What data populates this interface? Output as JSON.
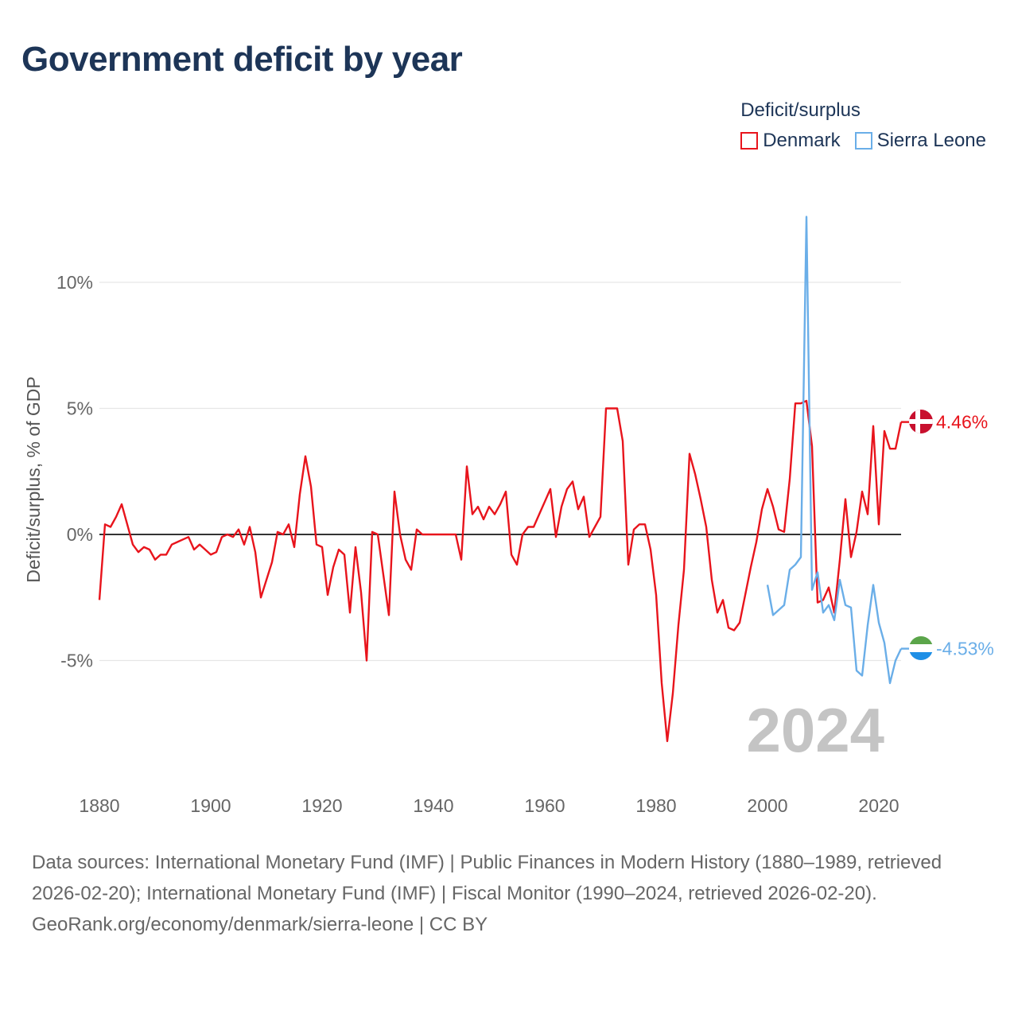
{
  "title": "Government deficit by year",
  "legend": {
    "title": "Deficit/surplus",
    "items": [
      {
        "name": "Denmark",
        "color": "#e8141c"
      },
      {
        "name": "Sierra Leone",
        "color": "#6aaee8"
      }
    ]
  },
  "footer": {
    "sources": "Data sources: International Monetary Fund (IMF) | Public Finances in Modern History (1880–1989, retrieved 2026-02-20); International Monetary Fund (IMF) | Fiscal Monitor (1990–2024, retrieved 2026-02-20).",
    "credit": "GeoRank.org/economy/denmark/sierra-leone | CC BY"
  },
  "chart_data": {
    "type": "line",
    "title": "Government deficit by year",
    "ylabel": "Deficit/surplus, % of GDP",
    "xlabel": "",
    "xlim": [
      1880,
      2024
    ],
    "ylim": [
      -9,
      13
    ],
    "x_ticks": [
      {
        "value": 1880,
        "label": "1880"
      },
      {
        "value": 1900,
        "label": "1900"
      },
      {
        "value": 1920,
        "label": "1920"
      },
      {
        "value": 1940,
        "label": "1940"
      },
      {
        "value": 1960,
        "label": "1960"
      },
      {
        "value": 1980,
        "label": "1980"
      },
      {
        "value": 2000,
        "label": "2000"
      },
      {
        "value": 2020,
        "label": "2020"
      }
    ],
    "y_ticks": [
      {
        "value": 10,
        "label": "10%"
      },
      {
        "value": 5,
        "label": "5%"
      },
      {
        "value": 0,
        "label": "0%"
      },
      {
        "value": -5,
        "label": "-5%"
      }
    ],
    "year_label": "2024",
    "series": [
      {
        "name": "Denmark",
        "color": "#e8141c",
        "end_label": "4.46%",
        "points": [
          [
            1880,
            -2.6
          ],
          [
            1881,
            0.4
          ],
          [
            1882,
            0.3
          ],
          [
            1883,
            0.7
          ],
          [
            1884,
            1.2
          ],
          [
            1885,
            0.4
          ],
          [
            1886,
            -0.4
          ],
          [
            1887,
            -0.7
          ],
          [
            1888,
            -0.5
          ],
          [
            1889,
            -0.6
          ],
          [
            1890,
            -1.0
          ],
          [
            1891,
            -0.8
          ],
          [
            1892,
            -0.8
          ],
          [
            1893,
            -0.4
          ],
          [
            1894,
            -0.3
          ],
          [
            1895,
            -0.2
          ],
          [
            1896,
            -0.1
          ],
          [
            1897,
            -0.6
          ],
          [
            1898,
            -0.4
          ],
          [
            1899,
            -0.6
          ],
          [
            1900,
            -0.8
          ],
          [
            1901,
            -0.7
          ],
          [
            1902,
            -0.1
          ],
          [
            1903,
            0.0
          ],
          [
            1904,
            -0.1
          ],
          [
            1905,
            0.2
          ],
          [
            1906,
            -0.4
          ],
          [
            1907,
            0.3
          ],
          [
            1908,
            -0.7
          ],
          [
            1909,
            -2.5
          ],
          [
            1910,
            -1.8
          ],
          [
            1911,
            -1.1
          ],
          [
            1912,
            0.1
          ],
          [
            1913,
            0.0
          ],
          [
            1914,
            0.4
          ],
          [
            1915,
            -0.5
          ],
          [
            1916,
            1.6
          ],
          [
            1917,
            3.1
          ],
          [
            1918,
            1.9
          ],
          [
            1919,
            -0.4
          ],
          [
            1920,
            -0.5
          ],
          [
            1921,
            -2.4
          ],
          [
            1922,
            -1.3
          ],
          [
            1923,
            -0.6
          ],
          [
            1924,
            -0.8
          ],
          [
            1925,
            -3.1
          ],
          [
            1926,
            -0.5
          ],
          [
            1927,
            -2.3
          ],
          [
            1928,
            -5.0
          ],
          [
            1929,
            0.1
          ],
          [
            1930,
            0.0
          ],
          [
            1931,
            -1.6
          ],
          [
            1932,
            -3.2
          ],
          [
            1933,
            1.7
          ],
          [
            1934,
            0.0
          ],
          [
            1935,
            -1.0
          ],
          [
            1936,
            -1.4
          ],
          [
            1937,
            0.2
          ],
          [
            1938,
            0.0
          ],
          [
            1939,
            0.0
          ],
          [
            1940,
            0.0
          ],
          [
            1941,
            0.0
          ],
          [
            1942,
            0.0
          ],
          [
            1943,
            0.0
          ],
          [
            1944,
            0.0
          ],
          [
            1945,
            -1.0
          ],
          [
            1946,
            2.7
          ],
          [
            1947,
            0.8
          ],
          [
            1948,
            1.1
          ],
          [
            1949,
            0.6
          ],
          [
            1950,
            1.1
          ],
          [
            1951,
            0.8
          ],
          [
            1952,
            1.2
          ],
          [
            1953,
            1.7
          ],
          [
            1954,
            -0.8
          ],
          [
            1955,
            -1.2
          ],
          [
            1956,
            0.0
          ],
          [
            1957,
            0.3
          ],
          [
            1958,
            0.3
          ],
          [
            1959,
            0.8
          ],
          [
            1960,
            1.3
          ],
          [
            1961,
            1.8
          ],
          [
            1962,
            -0.1
          ],
          [
            1963,
            1.1
          ],
          [
            1964,
            1.8
          ],
          [
            1965,
            2.1
          ],
          [
            1966,
            1.0
          ],
          [
            1967,
            1.5
          ],
          [
            1968,
            -0.1
          ],
          [
            1969,
            0.3
          ],
          [
            1970,
            0.7
          ],
          [
            1971,
            5.0
          ],
          [
            1972,
            5.0
          ],
          [
            1973,
            5.0
          ],
          [
            1974,
            3.7
          ],
          [
            1975,
            -1.2
          ],
          [
            1976,
            0.2
          ],
          [
            1977,
            0.4
          ],
          [
            1978,
            0.4
          ],
          [
            1979,
            -0.6
          ],
          [
            1980,
            -2.4
          ],
          [
            1981,
            -5.9
          ],
          [
            1982,
            -8.2
          ],
          [
            1983,
            -6.3
          ],
          [
            1984,
            -3.6
          ],
          [
            1985,
            -1.4
          ],
          [
            1986,
            3.2
          ],
          [
            1987,
            2.4
          ],
          [
            1988,
            1.4
          ],
          [
            1989,
            0.3
          ],
          [
            1990,
            -1.8
          ],
          [
            1991,
            -3.1
          ],
          [
            1992,
            -2.6
          ],
          [
            1993,
            -3.7
          ],
          [
            1994,
            -3.8
          ],
          [
            1995,
            -3.5
          ],
          [
            1996,
            -2.4
          ],
          [
            1997,
            -1.3
          ],
          [
            1998,
            -0.3
          ],
          [
            1999,
            1.0
          ],
          [
            2000,
            1.8
          ],
          [
            2001,
            1.1
          ],
          [
            2002,
            0.2
          ],
          [
            2003,
            0.1
          ],
          [
            2004,
            2.2
          ],
          [
            2005,
            5.2
          ],
          [
            2006,
            5.2
          ],
          [
            2007,
            5.3
          ],
          [
            2008,
            3.5
          ],
          [
            2009,
            -2.7
          ],
          [
            2010,
            -2.6
          ],
          [
            2011,
            -2.1
          ],
          [
            2012,
            -3.1
          ],
          [
            2013,
            -1.0
          ],
          [
            2014,
            1.4
          ],
          [
            2015,
            -0.9
          ],
          [
            2016,
            0.1
          ],
          [
            2017,
            1.7
          ],
          [
            2018,
            0.8
          ],
          [
            2019,
            4.3
          ],
          [
            2020,
            0.4
          ],
          [
            2021,
            4.1
          ],
          [
            2022,
            3.4
          ],
          [
            2023,
            3.4
          ],
          [
            2024,
            4.46
          ]
        ]
      },
      {
        "name": "Sierra Leone",
        "color": "#6aaee8",
        "end_label": "-4.53%",
        "points": [
          [
            2000,
            -2.0
          ],
          [
            2001,
            -3.2
          ],
          [
            2002,
            -3.0
          ],
          [
            2003,
            -2.8
          ],
          [
            2004,
            -1.4
          ],
          [
            2005,
            -1.2
          ],
          [
            2006,
            -0.9
          ],
          [
            2007,
            12.6
          ],
          [
            2008,
            -2.2
          ],
          [
            2009,
            -1.5
          ],
          [
            2010,
            -3.1
          ],
          [
            2011,
            -2.8
          ],
          [
            2012,
            -3.4
          ],
          [
            2013,
            -1.8
          ],
          [
            2014,
            -2.8
          ],
          [
            2015,
            -2.9
          ],
          [
            2016,
            -5.4
          ],
          [
            2017,
            -5.6
          ],
          [
            2018,
            -3.6
          ],
          [
            2019,
            -2.0
          ],
          [
            2020,
            -3.5
          ],
          [
            2021,
            -4.3
          ],
          [
            2022,
            -5.9
          ],
          [
            2023,
            -5.0
          ],
          [
            2024,
            -4.53
          ]
        ]
      }
    ]
  }
}
